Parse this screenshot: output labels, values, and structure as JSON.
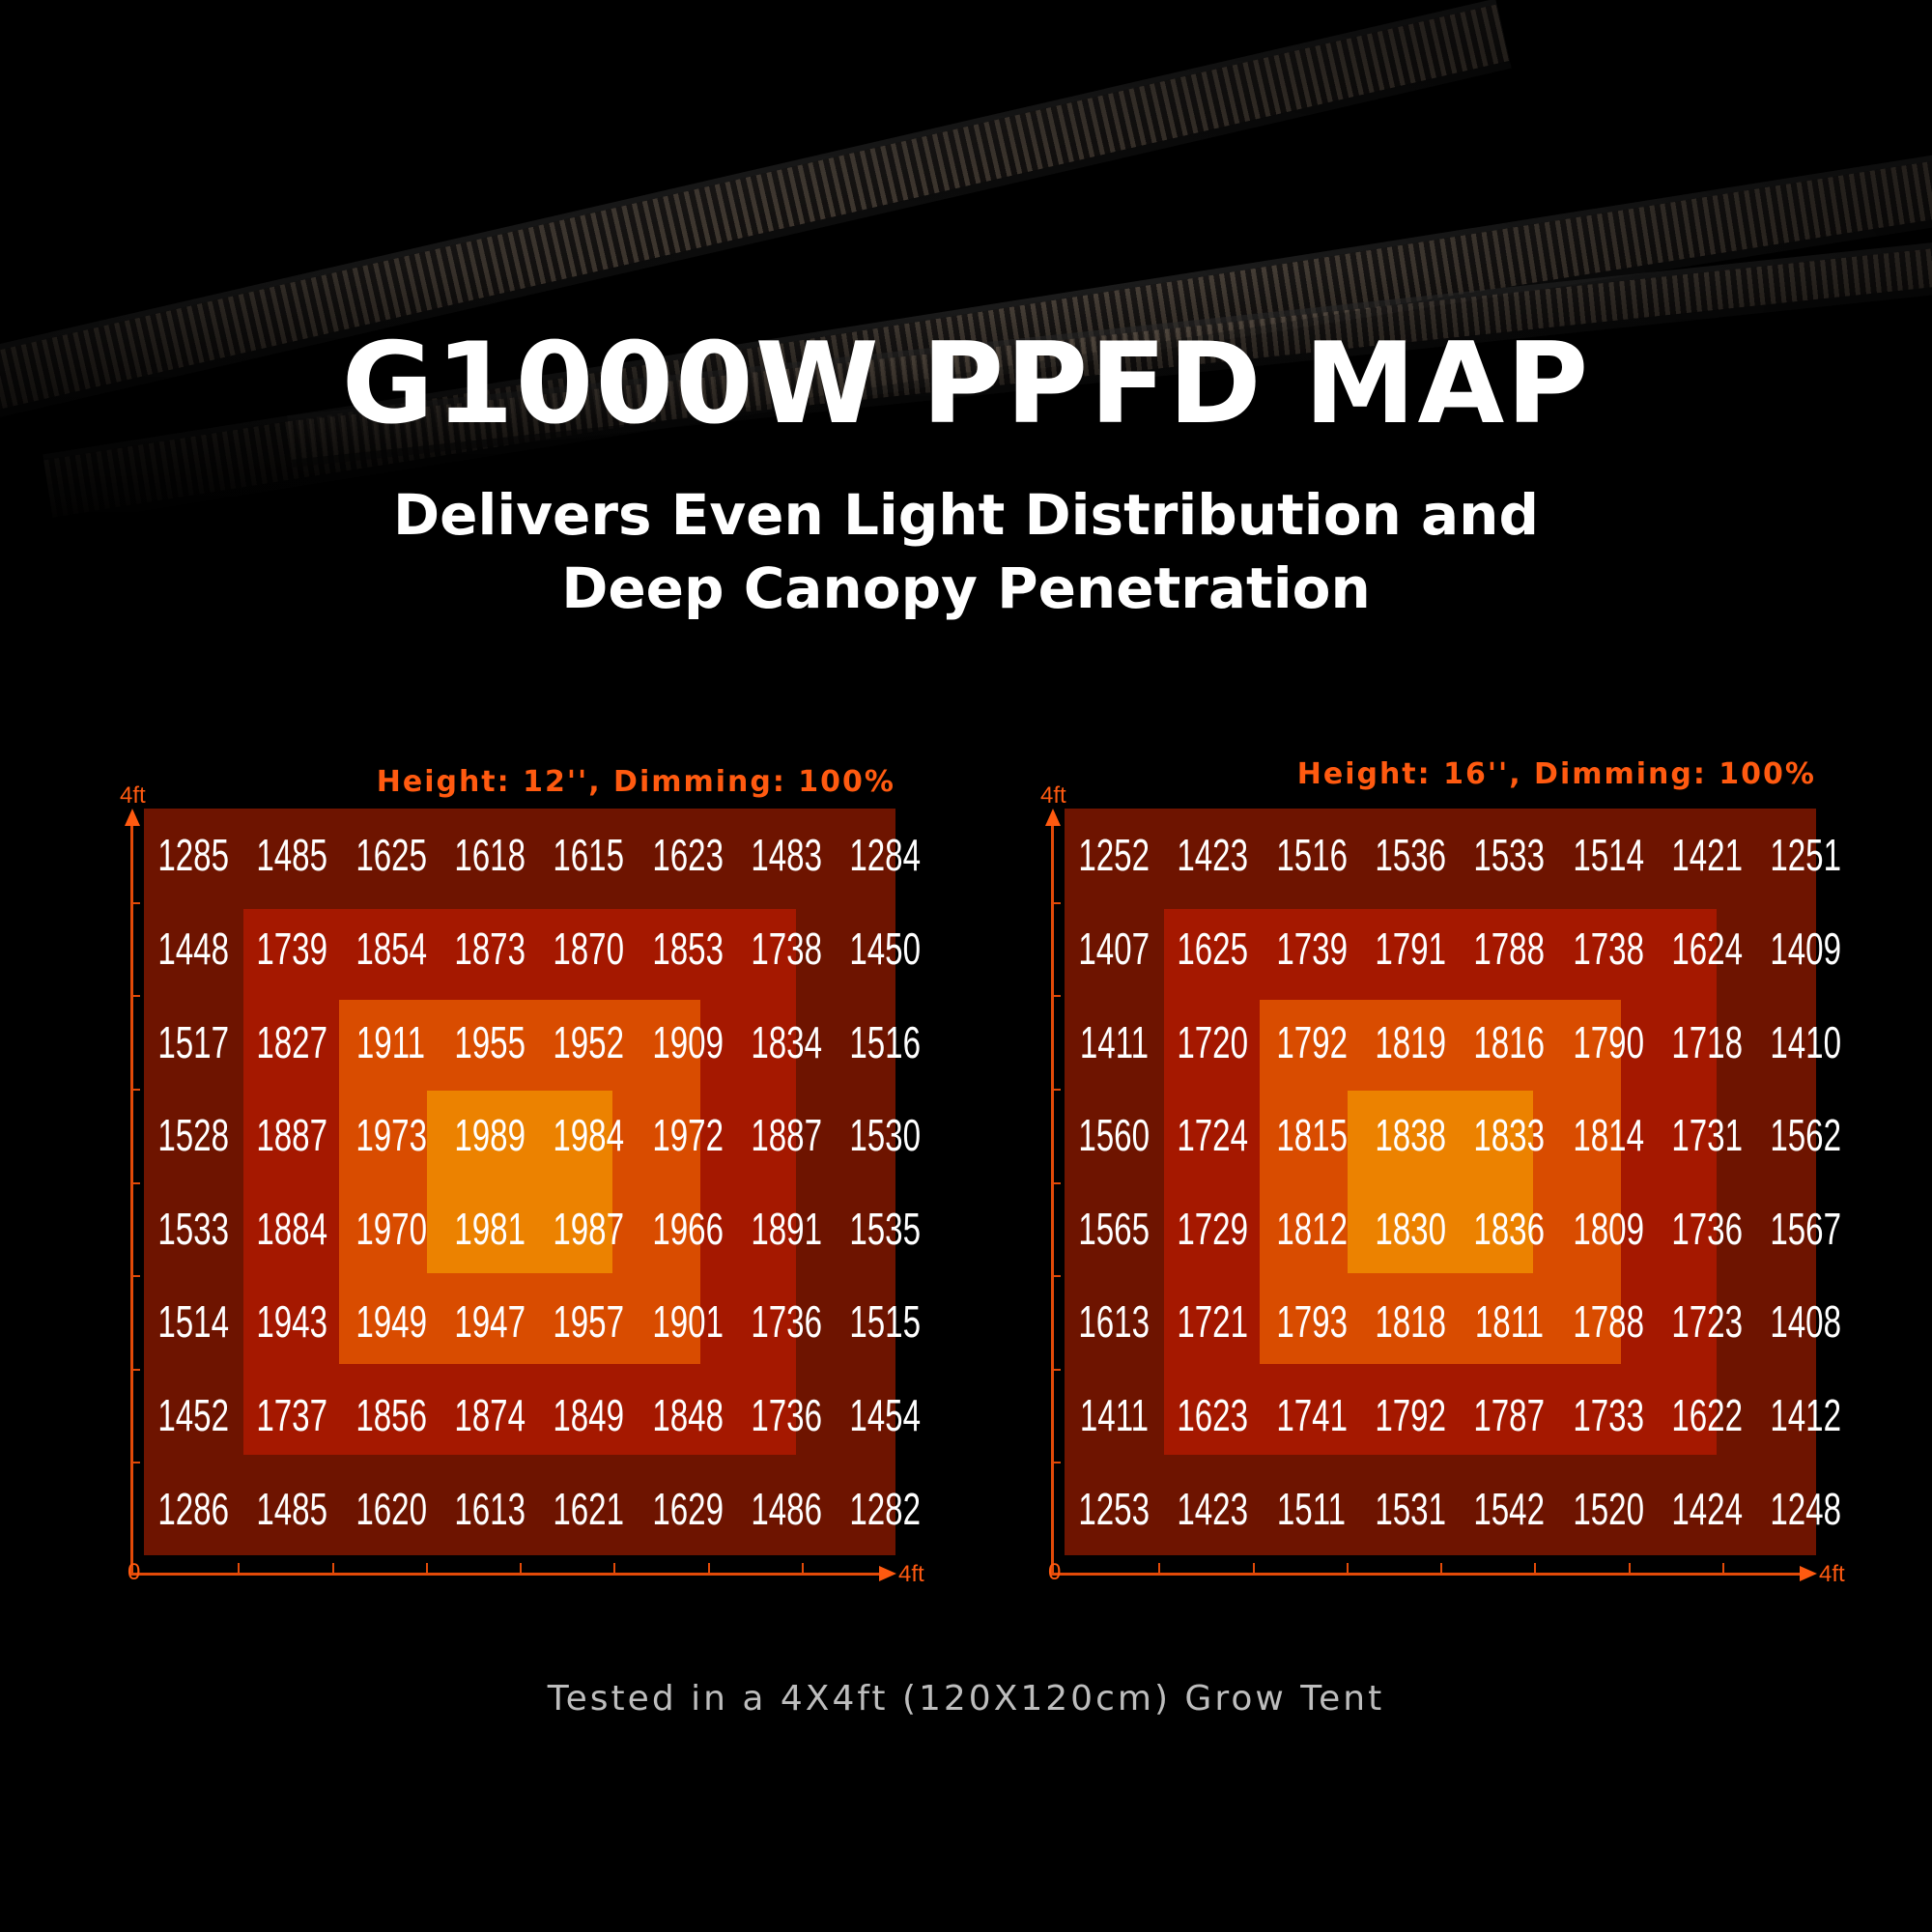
{
  "header": {
    "title": "G1000W PPFD MAP",
    "subtitle_line1": "Delivers Even Light Distribution and",
    "subtitle_line2": "Deep Canopy Penetration"
  },
  "footer": "Tested in a 4X4ft (120X120cm) Grow Tent",
  "colors": {
    "background": "#000000",
    "outer_band": "#6e1400",
    "ring_band": "#a51800",
    "inner_band": "#d94c00",
    "center_band": "#ec8200",
    "accent": "#ff5a10"
  },
  "chart_data": [
    {
      "type": "heatmap",
      "title": "Height: 12'', Dimming: 100%",
      "x_axis": {
        "min_label": "0",
        "max_label": "4ft"
      },
      "y_axis": {
        "max_label": "4ft"
      },
      "values": [
        [
          1285,
          1485,
          1625,
          1618,
          1615,
          1623,
          1483,
          1284
        ],
        [
          1448,
          1739,
          1854,
          1873,
          1870,
          1853,
          1738,
          1450
        ],
        [
          1517,
          1827,
          1911,
          1955,
          1952,
          1909,
          1834,
          1516
        ],
        [
          1528,
          1887,
          1973,
          1989,
          1984,
          1972,
          1887,
          1530
        ],
        [
          1533,
          1884,
          1970,
          1981,
          1987,
          1966,
          1891,
          1535
        ],
        [
          1514,
          1943,
          1949,
          1947,
          1957,
          1901,
          1736,
          1515
        ],
        [
          1452,
          1737,
          1856,
          1874,
          1849,
          1848,
          1736,
          1454
        ],
        [
          1286,
          1485,
          1620,
          1613,
          1621,
          1629,
          1486,
          1282
        ]
      ]
    },
    {
      "type": "heatmap",
      "title": "Height: 16'', Dimming: 100%",
      "x_axis": {
        "min_label": "0",
        "max_label": "4ft"
      },
      "y_axis": {
        "max_label": "4ft"
      },
      "values": [
        [
          1252,
          1423,
          1516,
          1536,
          1533,
          1514,
          1421,
          1251
        ],
        [
          1407,
          1625,
          1739,
          1791,
          1788,
          1738,
          1624,
          1409
        ],
        [
          1411,
          1720,
          1792,
          1819,
          1816,
          1790,
          1718,
          1410
        ],
        [
          1560,
          1724,
          1815,
          1838,
          1833,
          1814,
          1731,
          1562
        ],
        [
          1565,
          1729,
          1812,
          1830,
          1836,
          1809,
          1736,
          1567
        ],
        [
          1613,
          1721,
          1793,
          1818,
          1811,
          1788,
          1723,
          1408
        ],
        [
          1411,
          1623,
          1741,
          1792,
          1787,
          1733,
          1622,
          1412
        ],
        [
          1253,
          1423,
          1511,
          1531,
          1542,
          1520,
          1424,
          1248
        ]
      ]
    }
  ]
}
